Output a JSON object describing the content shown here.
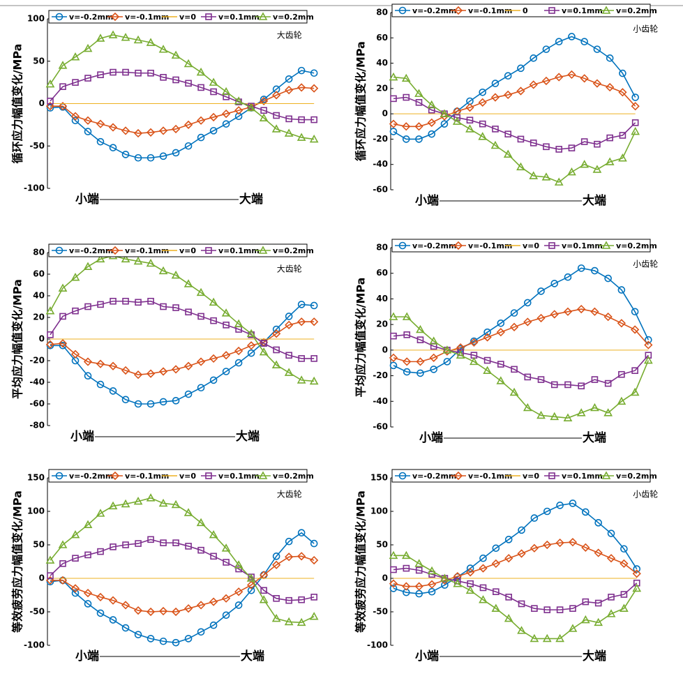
{
  "chart_data": [
    {
      "type": "line",
      "ylabel": "循环应力幅值变化/MPa",
      "annotation": "大齿轮",
      "xlabel_left": "小端",
      "xlabel_right": "大端",
      "ylim": [
        -100,
        100
      ],
      "yticks": [
        -100,
        -50,
        0,
        50,
        100
      ],
      "series": [
        {
          "name": "v=-0.2mm",
          "color": "#0072bd",
          "values": [
            -5,
            -4,
            -20,
            -33,
            -45,
            -52,
            -60,
            -64,
            -64,
            -62,
            -58,
            -50,
            -40,
            -32,
            -24,
            -15,
            -5,
            5,
            17,
            29,
            39,
            36
          ]
        },
        {
          "name": "v=-0.1mm",
          "color": "#d95319",
          "values": [
            -3,
            -3,
            -15,
            -20,
            -24,
            -28,
            -32,
            -35,
            -34,
            -32,
            -30,
            -25,
            -20,
            -16,
            -12,
            -8,
            -4,
            3,
            10,
            16,
            19,
            18
          ]
        },
        {
          "name": "v=0",
          "color": "#edb120",
          "values": [
            0,
            0,
            0,
            0,
            0,
            0,
            0,
            0,
            0,
            0,
            0,
            0,
            0,
            0,
            0,
            0,
            0,
            0,
            0,
            0,
            0,
            0
          ]
        },
        {
          "name": "v=0.1mm",
          "color": "#7e2f8e",
          "values": [
            3,
            20,
            25,
            30,
            34,
            37,
            37,
            36,
            36,
            31,
            28,
            24,
            19,
            14,
            8,
            2,
            -3,
            -8,
            -14,
            -18,
            -19,
            -19
          ]
        },
        {
          "name": "v=0.2mm",
          "color": "#77ac30",
          "values": [
            23,
            45,
            55,
            65,
            77,
            81,
            78,
            75,
            72,
            64,
            57,
            47,
            37,
            25,
            14,
            3,
            -5,
            -17,
            -30,
            -35,
            -40,
            -42
          ]
        }
      ]
    },
    {
      "type": "line",
      "ylabel": "循环应力幅值变化/MPa",
      "annotation": "小齿轮",
      "xlabel_left": "小端",
      "xlabel_right": "大端",
      "ylim": [
        -60,
        80
      ],
      "yticks": [
        -60,
        -40,
        -20,
        0,
        20,
        40,
        60,
        80
      ],
      "series": [
        {
          "name": "v=-0.2mm",
          "color": "#0072bd",
          "values": [
            -14,
            -20,
            -20,
            -16,
            -8,
            2,
            10,
            17,
            24,
            30,
            36,
            44,
            51,
            57,
            61,
            57,
            51,
            44,
            32,
            13
          ]
        },
        {
          "name": "v=-0.1mm",
          "color": "#d95319",
          "values": [
            -8,
            -10,
            -10,
            -7,
            -2,
            2,
            5,
            9,
            13,
            15,
            18,
            23,
            26,
            29,
            31,
            28,
            24,
            21,
            17,
            6
          ]
        },
        {
          "name": "0",
          "color": "#edb120",
          "values": [
            0,
            0,
            0,
            0,
            0,
            0,
            0,
            0,
            0,
            0,
            0,
            0,
            0,
            0,
            0,
            0,
            0,
            0,
            0,
            0
          ]
        },
        {
          "name": "v=0.1mm",
          "color": "#7e2f8e",
          "values": [
            12,
            13,
            9,
            3,
            0,
            -3,
            -5,
            -8,
            -12,
            -16,
            -20,
            -23,
            -26,
            -28,
            -27,
            -22,
            -24,
            -19,
            -17,
            -7
          ]
        },
        {
          "name": "v=0.2mm",
          "color": "#77ac30",
          "values": [
            29,
            28,
            16,
            7,
            0,
            -6,
            -12,
            -18,
            -25,
            -32,
            -42,
            -49,
            -50,
            -54,
            -46,
            -40,
            -44,
            -38,
            -35,
            -14
          ]
        }
      ]
    },
    {
      "type": "line",
      "ylabel": "平均应力幅值变化/MPa",
      "annotation": "大齿轮",
      "xlabel_left": "小端",
      "xlabel_right": "大端",
      "ylim": [
        -80,
        80
      ],
      "yticks": [
        -80,
        -60,
        -40,
        -20,
        0,
        20,
        40,
        60,
        80
      ],
      "series": [
        {
          "name": "v=-0.2mm",
          "color": "#0072bd",
          "values": [
            -6,
            -6,
            -20,
            -34,
            -42,
            -48,
            -56,
            -60,
            -60,
            -58,
            -57,
            -51,
            -45,
            -38,
            -30,
            -22,
            -13,
            -3,
            9,
            21,
            32,
            31
          ]
        },
        {
          "name": "v=-0.1mm",
          "color": "#d95319",
          "values": [
            -5,
            -4,
            -14,
            -21,
            -23,
            -25,
            -29,
            -33,
            -32,
            -30,
            -28,
            -25,
            -21,
            -18,
            -15,
            -11,
            -6,
            -3,
            5,
            13,
            16,
            16
          ]
        },
        {
          "name": "v=0",
          "color": "#edb120",
          "values": [
            0,
            0,
            0,
            0,
            0,
            0,
            0,
            0,
            0,
            0,
            0,
            0,
            0,
            0,
            0,
            0,
            0,
            0,
            0,
            0,
            0,
            0
          ]
        },
        {
          "name": "v=0.1mm",
          "color": "#7e2f8e",
          "values": [
            4,
            21,
            26,
            30,
            32,
            35,
            35,
            34,
            35,
            30,
            29,
            25,
            21,
            17,
            13,
            9,
            4,
            -4,
            -10,
            -15,
            -18,
            -18
          ]
        },
        {
          "name": "v=0.2mm",
          "color": "#77ac30",
          "values": [
            26,
            47,
            57,
            67,
            74,
            77,
            74,
            72,
            70,
            63,
            59,
            51,
            43,
            34,
            24,
            14,
            5,
            -12,
            -24,
            -31,
            -38,
            -39
          ]
        }
      ]
    },
    {
      "type": "line",
      "ylabel": "平均应力幅值变化/MPa",
      "annotation": "小齿轮",
      "xlabel_left": "小端",
      "xlabel_right": "大端",
      "ylim": [
        -60,
        80
      ],
      "yticks": [
        -60,
        -40,
        -20,
        0,
        20,
        40,
        60,
        80
      ],
      "series": [
        {
          "name": "v=-0.2mm",
          "color": "#0072bd",
          "values": [
            -12,
            -17,
            -18,
            -15,
            -9,
            1,
            7,
            14,
            21,
            29,
            37,
            46,
            52,
            57,
            64,
            62,
            56,
            47,
            30,
            8
          ]
        },
        {
          "name": "v=-0.1mm",
          "color": "#d95319",
          "values": [
            -6,
            -9,
            -9,
            -6,
            -1,
            2,
            6,
            10,
            14,
            18,
            22,
            25,
            28,
            30,
            32,
            30,
            26,
            21,
            16,
            4
          ]
        },
        {
          "name": "v=0",
          "color": "#edb120",
          "values": [
            0,
            0,
            0,
            0,
            0,
            0,
            0,
            0,
            0,
            0,
            0,
            0,
            0,
            0,
            0,
            0,
            0,
            0,
            0,
            0
          ]
        },
        {
          "name": "v=0.1mm",
          "color": "#7e2f8e",
          "values": [
            11,
            12,
            8,
            3,
            0,
            -2,
            -4,
            -8,
            -11,
            -15,
            -21,
            -23,
            -27,
            -27,
            -28,
            -23,
            -26,
            -19,
            -16,
            -4
          ]
        },
        {
          "name": "v=0.2mm",
          "color": "#77ac30",
          "values": [
            26,
            26,
            16,
            7,
            0,
            -4,
            -9,
            -16,
            -24,
            -33,
            -45,
            -51,
            -52,
            -53,
            -49,
            -45,
            -49,
            -40,
            -33,
            -8
          ]
        }
      ]
    },
    {
      "type": "line",
      "ylabel": "等效疲劳应力幅值变化/MPa",
      "annotation": "大齿轮",
      "xlabel_left": "小端",
      "xlabel_right": "大端",
      "ylim": [
        -100,
        150
      ],
      "yticks": [
        -100,
        -50,
        0,
        50,
        100,
        150
      ],
      "series": [
        {
          "name": "v=-0.2mm",
          "color": "#0072bd",
          "values": [
            -5,
            -3,
            -22,
            -38,
            -52,
            -62,
            -74,
            -84,
            -90,
            -94,
            -96,
            -90,
            -80,
            -70,
            -55,
            -40,
            -18,
            5,
            33,
            55,
            68,
            52
          ]
        },
        {
          "name": "v=-0.1mm",
          "color": "#d95319",
          "values": [
            -3,
            -3,
            -15,
            -22,
            -28,
            -33,
            -40,
            -48,
            -50,
            -49,
            -50,
            -45,
            -40,
            -35,
            -30,
            -20,
            -10,
            5,
            20,
            32,
            33,
            27
          ]
        },
        {
          "name": "v=0",
          "color": "#edb120",
          "values": [
            0,
            0,
            0,
            0,
            0,
            0,
            0,
            0,
            0,
            0,
            0,
            0,
            0,
            0,
            0,
            0,
            0,
            0,
            0,
            0,
            0,
            0
          ]
        },
        {
          "name": "v=0.1mm",
          "color": "#7e2f8e",
          "values": [
            4,
            22,
            30,
            35,
            40,
            47,
            50,
            52,
            58,
            53,
            53,
            48,
            42,
            33,
            24,
            14,
            2,
            -18,
            -30,
            -33,
            -32,
            -28
          ]
        },
        {
          "name": "v=0.2mm",
          "color": "#77ac30",
          "values": [
            27,
            50,
            65,
            80,
            97,
            108,
            111,
            115,
            120,
            112,
            110,
            98,
            83,
            65,
            45,
            20,
            0,
            -32,
            -60,
            -65,
            -66,
            -57
          ]
        }
      ]
    },
    {
      "type": "line",
      "ylabel": "等效疲劳应力幅值变化/MPa",
      "annotation": "小齿轮",
      "xlabel_left": "小端",
      "xlabel_right": "大端",
      "ylim": [
        -100,
        150
      ],
      "yticks": [
        -100,
        -50,
        0,
        50,
        100,
        150
      ],
      "series": [
        {
          "name": "v=-0.2mm",
          "color": "#0072bd",
          "values": [
            -15,
            -21,
            -23,
            -20,
            -10,
            2,
            15,
            30,
            45,
            58,
            72,
            90,
            100,
            109,
            112,
            99,
            83,
            67,
            44,
            14
          ]
        },
        {
          "name": "v=-0.1mm",
          "color": "#d95319",
          "values": [
            -8,
            -12,
            -12,
            -9,
            -3,
            3,
            9,
            15,
            22,
            30,
            37,
            45,
            50,
            53,
            54,
            46,
            38,
            30,
            22,
            7
          ]
        },
        {
          "name": "v=0",
          "color": "#edb120",
          "values": [
            0,
            0,
            0,
            0,
            0,
            0,
            0,
            0,
            0,
            0,
            0,
            0,
            0,
            0,
            0,
            0,
            0,
            0,
            0,
            0
          ]
        },
        {
          "name": "v=0.1mm",
          "color": "#7e2f8e",
          "values": [
            13,
            15,
            12,
            6,
            0,
            -4,
            -8,
            -14,
            -20,
            -28,
            -38,
            -45,
            -47,
            -47,
            -45,
            -35,
            -37,
            -28,
            -24,
            -7
          ]
        },
        {
          "name": "v=0.2mm",
          "color": "#77ac30",
          "values": [
            34,
            34,
            22,
            11,
            0,
            -8,
            -18,
            -32,
            -45,
            -60,
            -78,
            -90,
            -90,
            -90,
            -75,
            -62,
            -66,
            -53,
            -45,
            -15
          ]
        }
      ]
    }
  ]
}
